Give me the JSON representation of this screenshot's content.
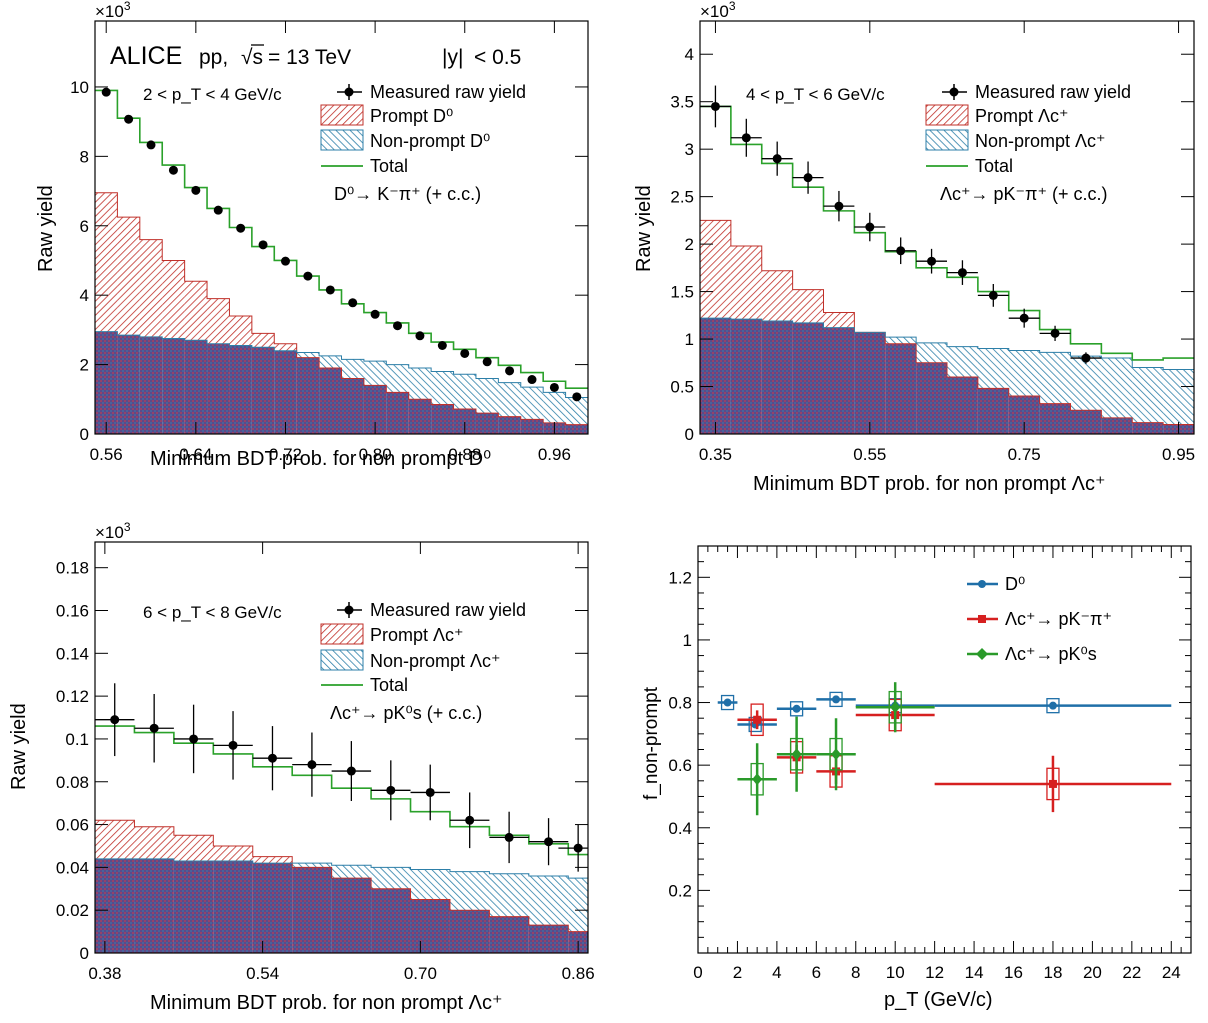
{
  "header": {
    "experiment": "ALICE",
    "system": "pp,",
    "energy_symbol": "√s",
    "energy_value": "= 13 TeV",
    "rapidity_var": "|y|",
    "rapidity_cut": "< 0.5"
  },
  "legend_labels": {
    "measured": "Measured raw yield",
    "prompt": "Prompt",
    "nonprompt": "Non-prompt",
    "total": "Total",
    "cc": "(+ c.c.)"
  },
  "colors": {
    "data": "#000000",
    "prompt": "#c0302a",
    "nonprompt": "#2d7fa8",
    "overlap": "#6a3c88",
    "total": "#2aa12a",
    "d0": "#1f6fa8",
    "lc_pkpi": "#d62020",
    "lc_pk0s": "#2a9a2a"
  },
  "chart_data": [
    {
      "type": "bar",
      "panel": "top-left",
      "multiplier": "×10",
      "multiplier_exp": "3",
      "pt_range": "2 < p_T < 4 GeV/c",
      "decay": "D⁰→ K⁻π⁺ (+ c.c.)",
      "prompt_label": "Prompt D⁰",
      "nonprompt_label": "Non-prompt D⁰",
      "xlabel": "Minimum BDT prob. for non prompt D⁰",
      "ylabel": "Raw yield",
      "xlim": [
        0.55,
        0.99
      ],
      "ylim": [
        0,
        11.9
      ],
      "xticks": [
        "0.56",
        "0.64",
        "0.72",
        "0.80",
        "0.88",
        "0.96"
      ],
      "xtick_values": [
        0.56,
        0.64,
        0.72,
        0.8,
        0.88,
        0.96
      ],
      "yticks": [
        "0",
        "2",
        "4",
        "6",
        "8",
        "10"
      ],
      "ytick_values": [
        0,
        2,
        4,
        6,
        8,
        10
      ],
      "bin_edges": [
        0.55,
        0.57,
        0.59,
        0.61,
        0.63,
        0.65,
        0.67,
        0.69,
        0.71,
        0.73,
        0.75,
        0.77,
        0.79,
        0.81,
        0.83,
        0.85,
        0.87,
        0.89,
        0.91,
        0.93,
        0.95,
        0.97,
        0.99
      ],
      "measured": [
        9.85,
        9.07,
        8.33,
        7.6,
        7.02,
        6.45,
        5.93,
        5.45,
        4.98,
        4.55,
        4.15,
        3.78,
        3.45,
        3.12,
        2.83,
        2.55,
        2.32,
        2.08,
        1.82,
        1.57,
        1.34,
        1.07
      ],
      "measured_err": [
        0.1,
        0.09,
        0.09,
        0.08,
        0.08,
        0.07,
        0.07,
        0.07,
        0.06,
        0.06,
        0.06,
        0.05,
        0.05,
        0.05,
        0.05,
        0.05,
        0.04,
        0.04,
        0.04,
        0.04,
        0.04,
        0.04
      ],
      "prompt": [
        6.95,
        6.25,
        5.6,
        5.0,
        4.4,
        3.9,
        3.4,
        2.9,
        2.6,
        2.2,
        1.9,
        1.6,
        1.4,
        1.2,
        1.0,
        0.85,
        0.72,
        0.6,
        0.5,
        0.42,
        0.32,
        0.27
      ],
      "nonprompt": [
        2.95,
        2.85,
        2.8,
        2.75,
        2.7,
        2.6,
        2.55,
        2.5,
        2.4,
        2.35,
        2.25,
        2.15,
        2.1,
        2.0,
        1.9,
        1.8,
        1.72,
        1.6,
        1.48,
        1.35,
        1.2,
        1.05
      ],
      "total": [
        9.9,
        9.1,
        8.4,
        7.75,
        7.1,
        6.5,
        5.95,
        5.4,
        5.0,
        4.55,
        4.15,
        3.75,
        3.5,
        3.2,
        2.9,
        2.65,
        2.44,
        2.2,
        1.98,
        1.77,
        1.52,
        1.32
      ]
    },
    {
      "type": "bar",
      "panel": "top-right",
      "multiplier": "×10",
      "multiplier_exp": "3",
      "pt_range": "4 < p_T < 6 GeV/c",
      "decay": "Λc⁺→ pK⁻π⁺ (+ c.c.)",
      "prompt_label": "Prompt Λc⁺",
      "nonprompt_label": "Non-prompt Λc⁺",
      "xlabel": "Minimum BDT prob. for non prompt Λc⁺",
      "ylabel": "Raw yield",
      "xlim": [
        0.33,
        0.97
      ],
      "ylim": [
        0,
        4.35
      ],
      "xticks": [
        "0.35",
        "0.55",
        "0.75",
        "0.95"
      ],
      "xtick_values": [
        0.35,
        0.55,
        0.75,
        0.95
      ],
      "yticks": [
        "0",
        "0.5",
        "1",
        "1.5",
        "2",
        "2.5",
        "3",
        "3.5",
        "4"
      ],
      "ytick_values": [
        0,
        0.5,
        1,
        1.5,
        2,
        2.5,
        3,
        3.5,
        4
      ],
      "bin_edges": [
        0.33,
        0.37,
        0.41,
        0.45,
        0.49,
        0.53,
        0.57,
        0.61,
        0.65,
        0.69,
        0.73,
        0.77,
        0.81,
        0.85,
        0.89,
        0.93,
        0.97
      ],
      "measured": [
        3.45,
        3.12,
        2.9,
        2.7,
        2.4,
        2.18,
        1.93,
        1.82,
        1.7,
        1.46,
        1.22,
        1.06,
        0.8
      ],
      "measured_x": [
        0.35,
        0.39,
        0.43,
        0.47,
        0.51,
        0.55,
        0.59,
        0.63,
        0.67,
        0.71,
        0.75,
        0.79,
        0.83
      ],
      "measured_err": [
        0.22,
        0.2,
        0.18,
        0.17,
        0.16,
        0.15,
        0.14,
        0.13,
        0.13,
        0.12,
        0.1,
        0.08,
        0.06
      ],
      "prompt": [
        2.25,
        1.98,
        1.72,
        1.52,
        1.28,
        1.07,
        0.95,
        0.75,
        0.6,
        0.48,
        0.4,
        0.32,
        0.25,
        0.17,
        0.12,
        0.1
      ],
      "nonprompt": [
        1.22,
        1.21,
        1.19,
        1.17,
        1.12,
        1.07,
        1.02,
        0.96,
        0.92,
        0.9,
        0.88,
        0.86,
        0.82,
        0.8,
        0.7,
        0.68
      ],
      "total": [
        3.45,
        3.05,
        2.85,
        2.6,
        2.35,
        2.12,
        1.92,
        1.75,
        1.65,
        1.5,
        1.3,
        1.1,
        0.95,
        0.85,
        0.78,
        0.8
      ]
    },
    {
      "type": "bar",
      "panel": "bottom-left",
      "multiplier": "×10",
      "multiplier_exp": "3",
      "pt_range": "6 < p_T < 8 GeV/c",
      "decay": "Λc⁺→ pK⁰s (+ c.c.)",
      "prompt_label": "Prompt Λc⁺",
      "nonprompt_label": "Non-prompt Λc⁺",
      "xlabel": "Minimum BDT prob. for non prompt Λc⁺",
      "ylabel": "Raw yield",
      "xlim": [
        0.37,
        0.87
      ],
      "ylim": [
        0,
        0.192
      ],
      "xticks": [
        "0.38",
        "0.54",
        "0.70",
        "0.86"
      ],
      "xtick_values": [
        0.38,
        0.54,
        0.7,
        0.86
      ],
      "yticks": [
        "0",
        "0.02",
        "0.04",
        "0.06",
        "0.08",
        "0.1",
        "0.12",
        "0.14",
        "0.16",
        "0.18"
      ],
      "ytick_values": [
        0,
        0.02,
        0.04,
        0.06,
        0.08,
        0.1,
        0.12,
        0.14,
        0.16,
        0.18
      ],
      "bin_edges": [
        0.37,
        0.41,
        0.45,
        0.49,
        0.53,
        0.57,
        0.61,
        0.65,
        0.69,
        0.73,
        0.77,
        0.81,
        0.85,
        0.87
      ],
      "measured": [
        0.109,
        0.105,
        0.1,
        0.097,
        0.091,
        0.088,
        0.085,
        0.076,
        0.075,
        0.062,
        0.054,
        0.052,
        0.049
      ],
      "measured_x": [
        0.39,
        0.43,
        0.47,
        0.51,
        0.55,
        0.59,
        0.63,
        0.67,
        0.71,
        0.75,
        0.79,
        0.83,
        0.86
      ],
      "measured_err": [
        0.017,
        0.016,
        0.016,
        0.016,
        0.015,
        0.015,
        0.014,
        0.014,
        0.013,
        0.013,
        0.012,
        0.011,
        0.011
      ],
      "prompt": [
        0.062,
        0.059,
        0.055,
        0.05,
        0.045,
        0.04,
        0.035,
        0.03,
        0.025,
        0.02,
        0.017,
        0.013,
        0.01
      ],
      "nonprompt": [
        0.044,
        0.044,
        0.043,
        0.043,
        0.042,
        0.042,
        0.041,
        0.04,
        0.039,
        0.038,
        0.037,
        0.036,
        0.035
      ],
      "total": [
        0.106,
        0.103,
        0.098,
        0.093,
        0.087,
        0.083,
        0.077,
        0.072,
        0.066,
        0.059,
        0.055,
        0.051,
        0.046
      ]
    },
    {
      "type": "scatter",
      "panel": "bottom-right",
      "xlabel": "p_T (GeV/c)",
      "ylabel": "f_non-prompt",
      "xlim": [
        0,
        25
      ],
      "ylim": [
        0,
        1.3
      ],
      "xticks": [
        "0",
        "2",
        "4",
        "6",
        "8",
        "10",
        "12",
        "14",
        "16",
        "18",
        "20",
        "22",
        "24"
      ],
      "xtick_values": [
        0,
        2,
        4,
        6,
        8,
        10,
        12,
        14,
        16,
        18,
        20,
        22,
        24
      ],
      "yticks": [
        "0.2",
        "0.4",
        "0.6",
        "0.8",
        "1",
        "1.2"
      ],
      "ytick_values": [
        0.2,
        0.4,
        0.6,
        0.8,
        1.0,
        1.2
      ],
      "series": [
        {
          "name": "D⁰",
          "color_key": "d0",
          "marker": "circle",
          "points": [
            {
              "x": 1.5,
              "xlo": 1,
              "xhi": 2,
              "y": 0.8,
              "err": 0.01,
              "sys": 0.015
            },
            {
              "x": 2.9,
              "xlo": 2,
              "xhi": 4,
              "y": 0.73,
              "err": 0.01,
              "sys": 0.015
            },
            {
              "x": 5.0,
              "xlo": 4,
              "xhi": 6,
              "y": 0.78,
              "err": 0.01,
              "sys": 0.015
            },
            {
              "x": 7.0,
              "xlo": 6,
              "xhi": 8,
              "y": 0.81,
              "err": 0.01,
              "sys": 0.015
            },
            {
              "x": 10.0,
              "xlo": 8,
              "xhi": 12,
              "y": 0.79,
              "err": 0.01,
              "sys": 0.015
            },
            {
              "x": 18.0,
              "xlo": 12,
              "xhi": 24,
              "y": 0.79,
              "err": 0.01,
              "sys": 0.02
            }
          ]
        },
        {
          "name": "Λc⁺→ pK⁻π⁺",
          "color_key": "lc_pkpi",
          "marker": "square",
          "points": [
            {
              "x": 3.0,
              "xlo": 2,
              "xhi": 4,
              "y": 0.745,
              "err": 0.03,
              "sys": 0.05
            },
            {
              "x": 5.0,
              "xlo": 4,
              "xhi": 6,
              "y": 0.625,
              "err": 0.04,
              "sys": 0.05
            },
            {
              "x": 7.0,
              "xlo": 6,
              "xhi": 8,
              "y": 0.58,
              "err": 0.04,
              "sys": 0.05
            },
            {
              "x": 10.0,
              "xlo": 8,
              "xhi": 12,
              "y": 0.76,
              "err": 0.05,
              "sys": 0.05
            },
            {
              "x": 18.0,
              "xlo": 12,
              "xhi": 24,
              "y": 0.54,
              "err": 0.09,
              "sys": 0.05
            }
          ]
        },
        {
          "name": "Λc⁺→ pK⁰s",
          "color_key": "lc_pk0s",
          "marker": "diamond",
          "points": [
            {
              "x": 3.0,
              "xlo": 2,
              "xhi": 4,
              "y": 0.555,
              "err": 0.115,
              "sys": 0.05
            },
            {
              "x": 5.0,
              "xlo": 4,
              "xhi": 6,
              "y": 0.635,
              "err": 0.12,
              "sys": 0.05
            },
            {
              "x": 7.0,
              "xlo": 6,
              "xhi": 8,
              "y": 0.635,
              "err": 0.115,
              "sys": 0.05
            },
            {
              "x": 10.0,
              "xlo": 8,
              "xhi": 12,
              "y": 0.785,
              "err": 0.08,
              "sys": 0.05
            }
          ]
        }
      ]
    }
  ]
}
